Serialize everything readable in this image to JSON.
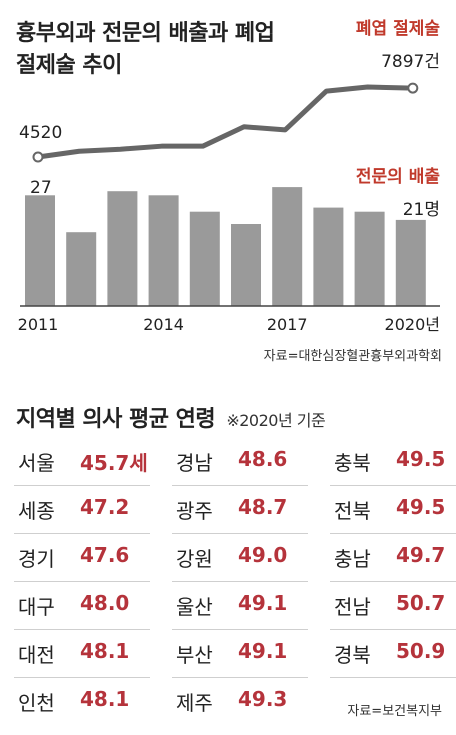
{
  "title": "흉부외과 전문의 배출과 폐업 절제술 추이",
  "chart_data": {
    "type": "bar+line",
    "x": [
      2011,
      2012,
      2013,
      2014,
      2015,
      2016,
      2017,
      2018,
      2019,
      2020
    ],
    "x_tick_labels": [
      "2011",
      "2014",
      "2017",
      "2020년"
    ],
    "series": [
      {
        "name": "폐엽 절제술",
        "type": "line",
        "color": "#666666",
        "values": [
          4520,
          4800,
          4900,
          5050,
          5050,
          6000,
          5850,
          7750,
          7950,
          7897
        ],
        "first_label": "4520",
        "last_label": "7897건"
      },
      {
        "name": "전문의 배출",
        "type": "bar",
        "color": "#9a9a9a",
        "values": [
          27,
          18,
          28,
          27,
          23,
          20,
          29,
          24,
          23,
          21
        ],
        "first_label": "27",
        "last_label": "21명"
      }
    ],
    "legend_color": "#c0392b",
    "source": "자료=대한심장혈관흉부외과학회"
  },
  "table": {
    "title": "지역별 의사 평균 연령",
    "note": "※2020년 기준",
    "columns": [
      [
        {
          "region": "서울",
          "value": "45.7세"
        },
        {
          "region": "세종",
          "value": "47.2"
        },
        {
          "region": "경기",
          "value": "47.6"
        },
        {
          "region": "대구",
          "value": "48.0"
        },
        {
          "region": "대전",
          "value": "48.1"
        },
        {
          "region": "인천",
          "value": "48.1"
        }
      ],
      [
        {
          "region": "경남",
          "value": "48.6"
        },
        {
          "region": "광주",
          "value": "48.7"
        },
        {
          "region": "강원",
          "value": "49.0"
        },
        {
          "region": "울산",
          "value": "49.1"
        },
        {
          "region": "부산",
          "value": "49.1"
        },
        {
          "region": "제주",
          "value": "49.3"
        }
      ],
      [
        {
          "region": "충북",
          "value": "49.5"
        },
        {
          "region": "전북",
          "value": "49.5"
        },
        {
          "region": "충남",
          "value": "49.7"
        },
        {
          "region": "전남",
          "value": "50.7"
        },
        {
          "region": "경북",
          "value": "50.9"
        }
      ]
    ],
    "source": "자료=보건복지부"
  }
}
